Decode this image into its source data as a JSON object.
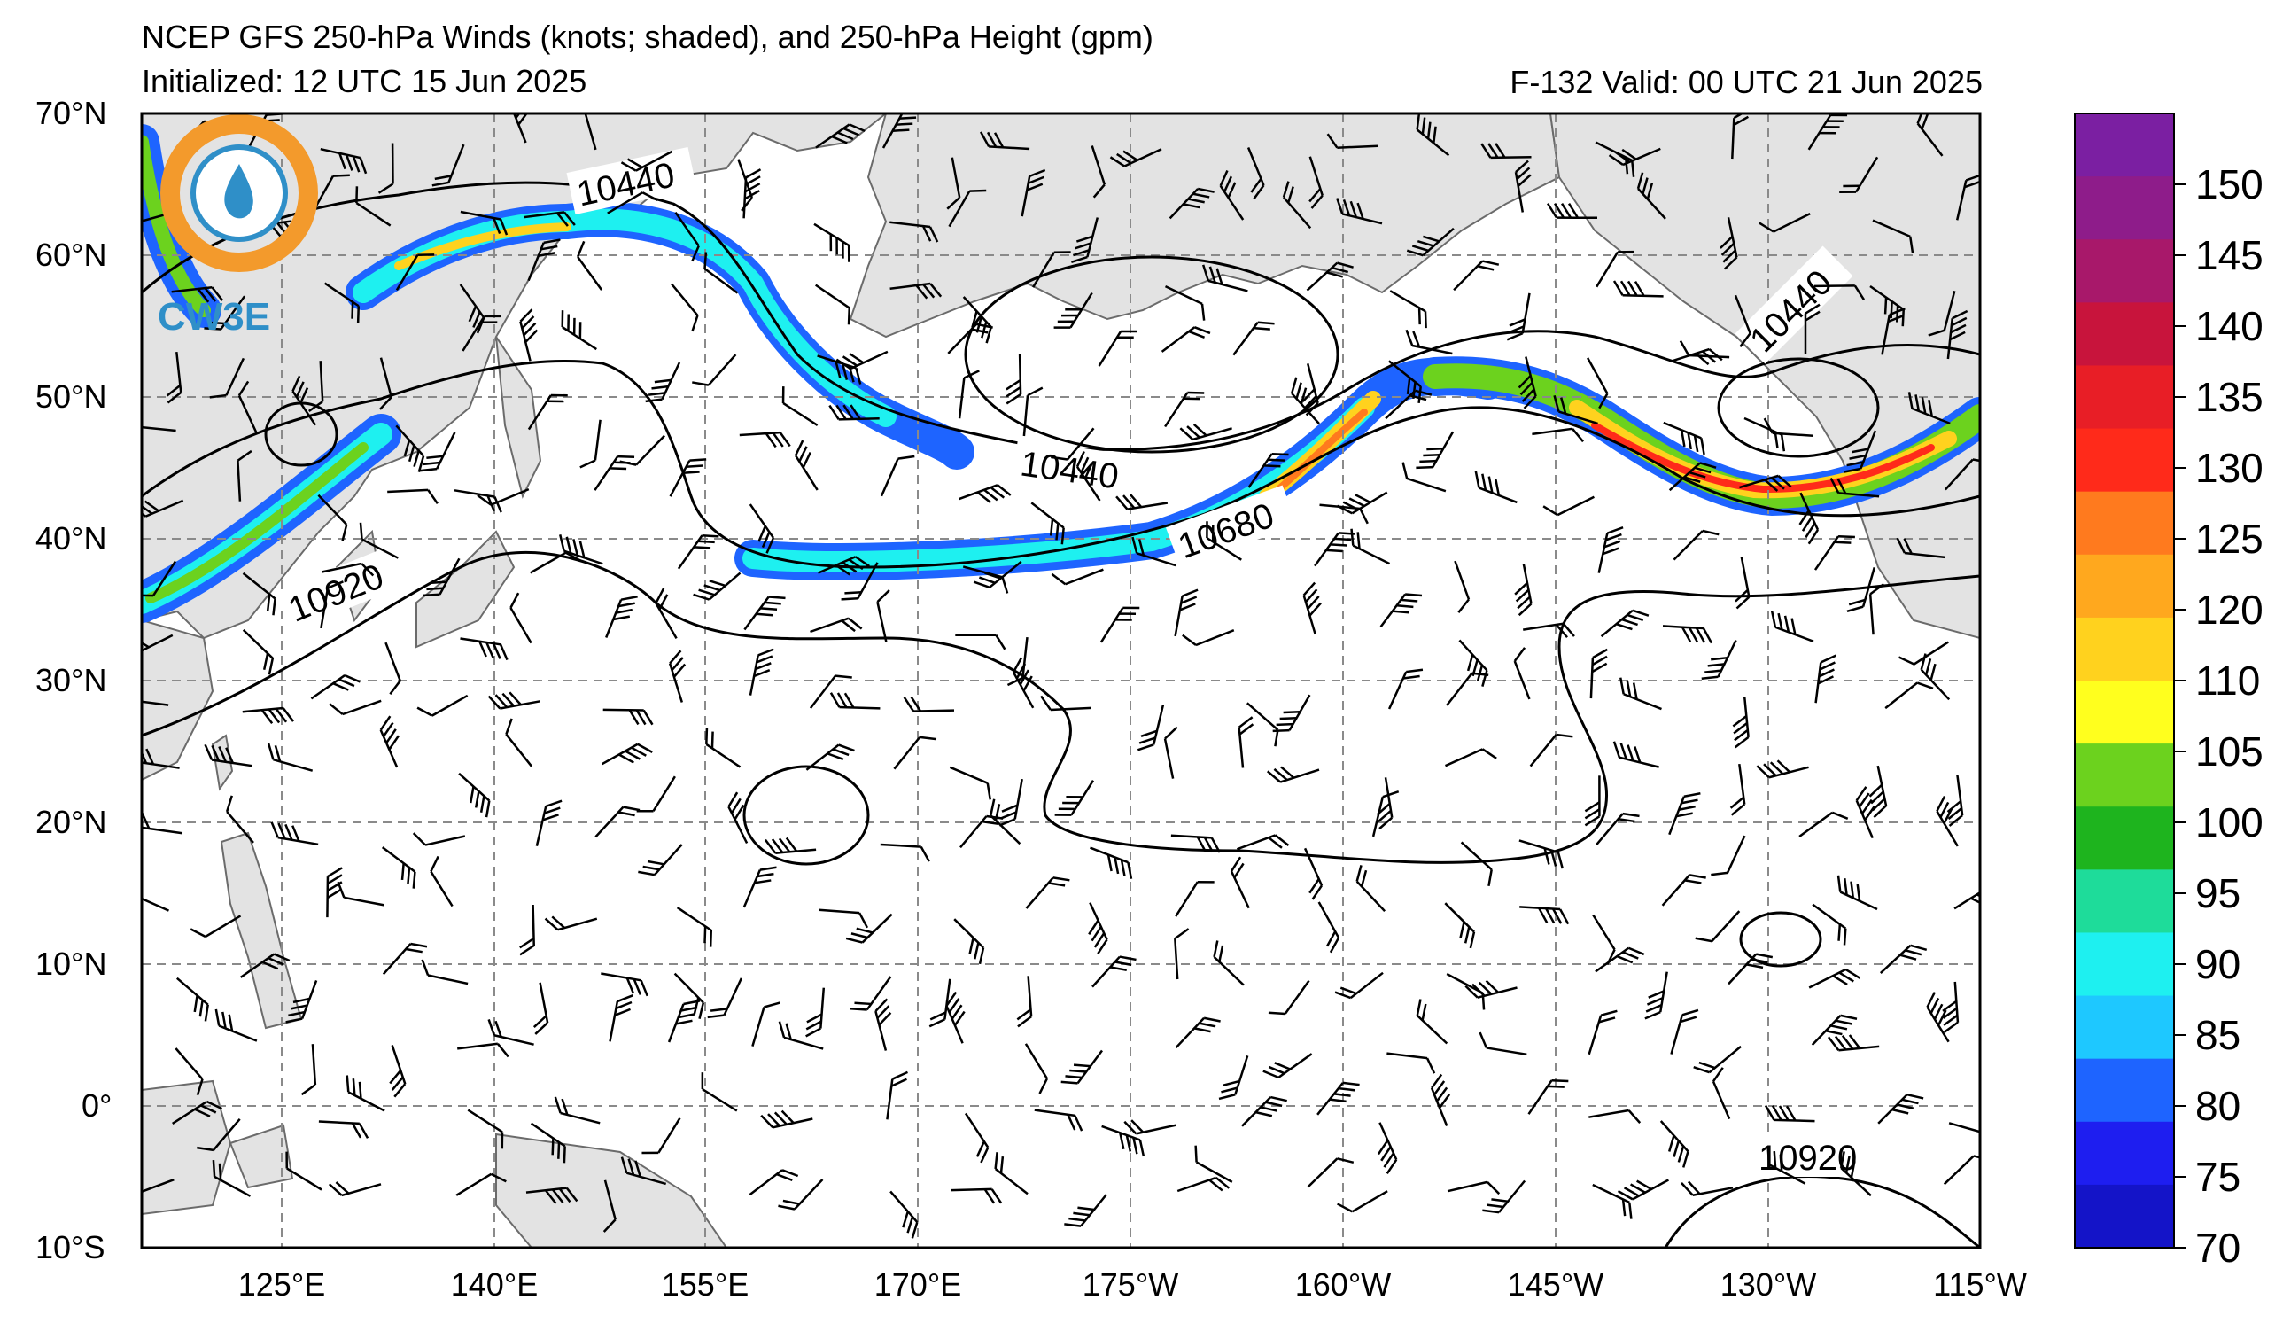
{
  "header": {
    "title": "NCEP GFS 250-hPa Winds (knots; shaded), and 250-hPa Height (gpm)",
    "initialized": "Initialized: 12 UTC 15 Jun 2025",
    "valid": "F-132  Valid: 00 UTC 21 Jun 2025"
  },
  "logo": {
    "text": "CW3E"
  },
  "axes": {
    "lat_labels": [
      "70°N",
      "60°N",
      "50°N",
      "40°N",
      "30°N",
      "20°N",
      "10°N",
      "0°",
      "10°S"
    ],
    "lon_labels": [
      "125°E",
      "140°E",
      "155°E",
      "170°E",
      "175°W",
      "160°W",
      "145°W",
      "130°W",
      "115°W"
    ]
  },
  "contour_labels": [
    {
      "text": "10440"
    },
    {
      "text": "10440"
    },
    {
      "text": "10440"
    },
    {
      "text": "10680"
    },
    {
      "text": "10920"
    },
    {
      "text": "10920"
    }
  ],
  "colorbar": {
    "ticks": [
      "150",
      "145",
      "140",
      "135",
      "130",
      "125",
      "120",
      "110",
      "105",
      "100",
      "95",
      "90",
      "85",
      "80",
      "75",
      "70"
    ],
    "colors": [
      "#7b1fa2",
      "#8e1c8a",
      "#a8186a",
      "#c8143c",
      "#e81e26",
      "#ff2a1a",
      "#ff7a1e",
      "#ffa81e",
      "#ffd21e",
      "#ffff1e",
      "#6cd21e",
      "#1eb41e",
      "#1edc9a",
      "#1ef0f0",
      "#1ec8ff",
      "#1e64ff",
      "#1e1ef0",
      "#1414c8"
    ]
  }
}
